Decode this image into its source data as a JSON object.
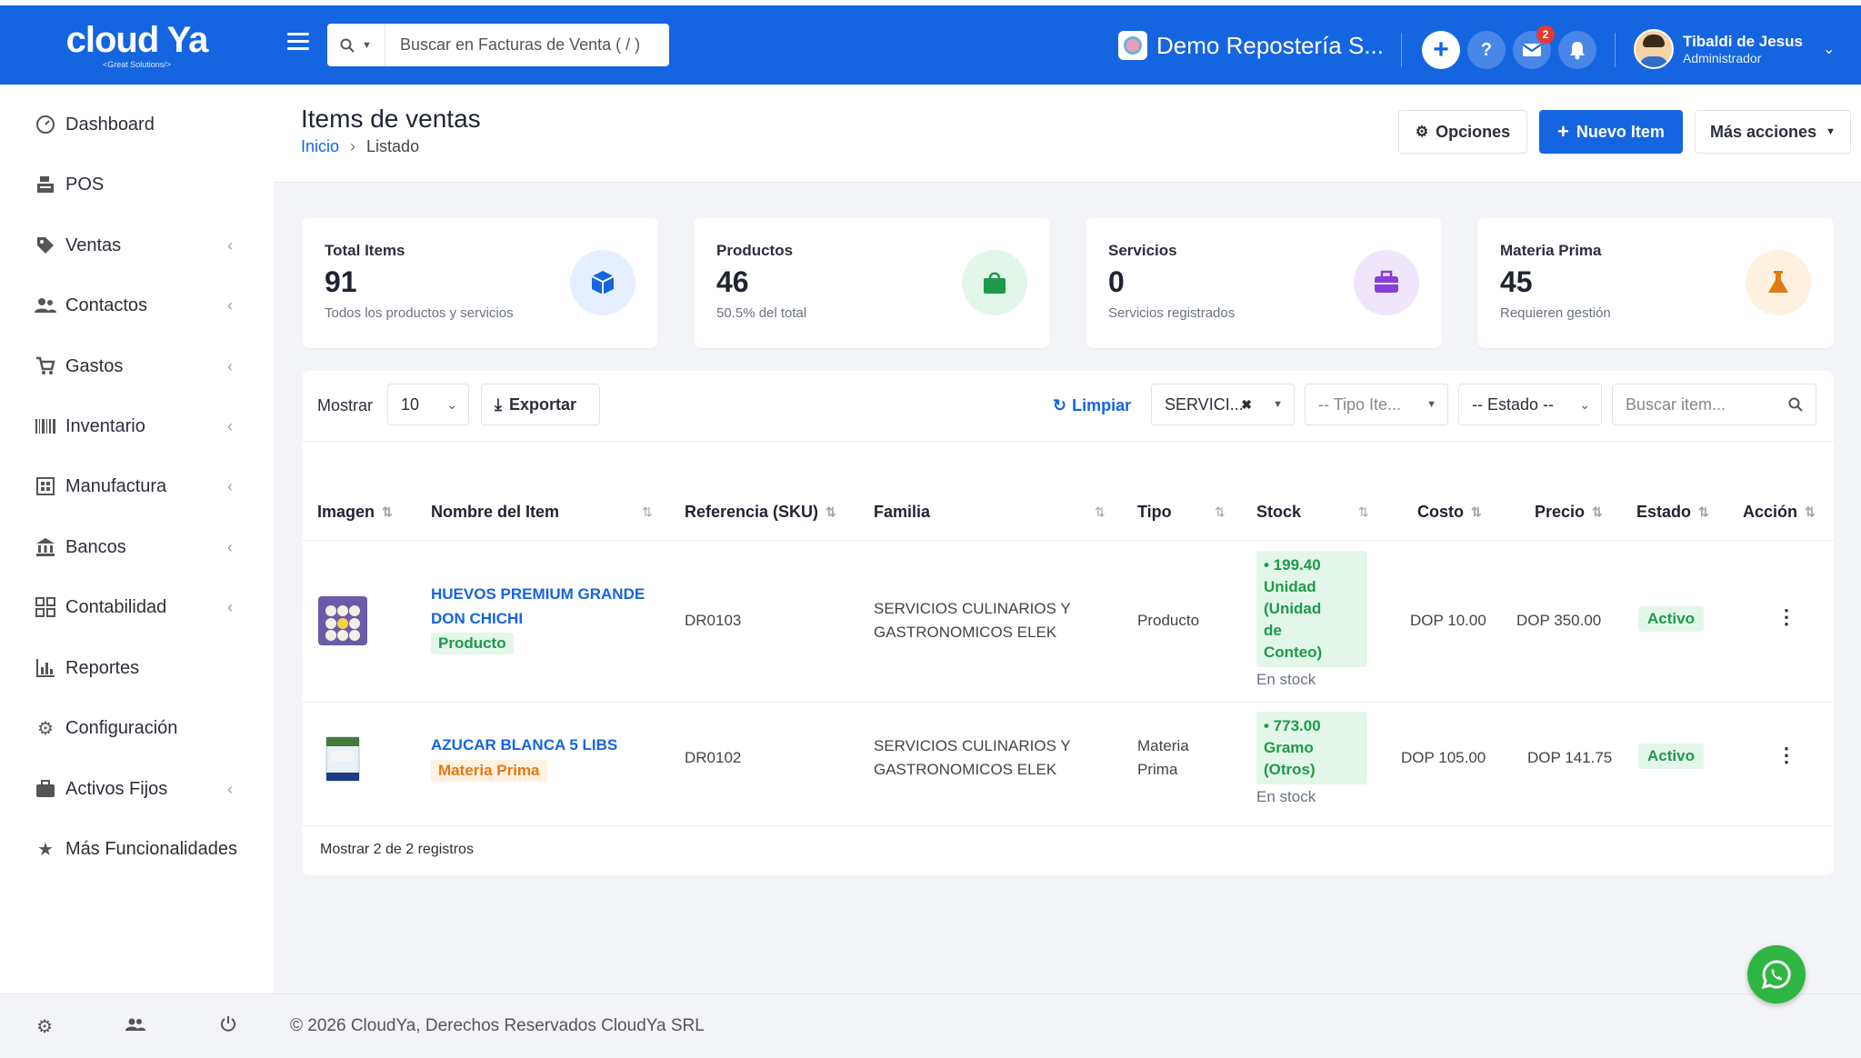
{
  "brand": {
    "name": "cloud Ya",
    "tagline": "<Great Solutions/>"
  },
  "header": {
    "search_placeholder": "Buscar en Facturas de Venta ( / )",
    "company": "Demo Repostería S...",
    "messages_badge": "2",
    "user_name": "Tibaldi de Jesus",
    "user_role": "Administrador"
  },
  "sidebar": {
    "items": [
      {
        "label": "Dashboard",
        "icon": "dashboard-icon"
      },
      {
        "label": "POS",
        "icon": "pos-icon"
      },
      {
        "label": "Ventas",
        "icon": "tag-icon"
      },
      {
        "label": "Contactos",
        "icon": "contacts-icon"
      },
      {
        "label": "Gastos",
        "icon": "cart-icon"
      },
      {
        "label": "Inventario",
        "icon": "barcode-icon"
      },
      {
        "label": "Manufactura",
        "icon": "factory-icon"
      },
      {
        "label": "Bancos",
        "icon": "bank-icon"
      },
      {
        "label": "Contabilidad",
        "icon": "grid-icon"
      },
      {
        "label": "Reportes",
        "icon": "chart-icon"
      },
      {
        "label": "Configuración",
        "icon": "gear-icon"
      },
      {
        "label": "Activos Fijos",
        "icon": "briefcase-icon"
      },
      {
        "label": "Más Funcionalidades",
        "icon": "star-icon"
      }
    ]
  },
  "page": {
    "title": "Items de ventas",
    "breadcrumb_home": "Inicio",
    "breadcrumb_current": "Listado",
    "options_label": "Opciones",
    "new_item_label": "Nuevo Item",
    "more_actions_label": "Más acciones"
  },
  "stats": [
    {
      "label": "Total Items",
      "value": "91",
      "sub": "Todos los productos y servicios",
      "bg": "#e6efff",
      "color": "#1565e0"
    },
    {
      "label": "Productos",
      "value": "46",
      "sub": "50.5% del total",
      "bg": "#e3f6ea",
      "color": "#1e9a4a"
    },
    {
      "label": "Servicios",
      "value": "0",
      "sub": "Servicios registrados",
      "bg": "#efe6fb",
      "color": "#8a3ed8"
    },
    {
      "label": "Materia Prima",
      "value": "45",
      "sub": "Requieren gestión",
      "bg": "#fff1e0",
      "color": "#e07a12"
    }
  ],
  "toolbar": {
    "show_label": "Mostrar",
    "page_size": "10",
    "export_label": "Exportar",
    "clear_label": "Limpiar",
    "family_filter": "SERVICI...",
    "type_filter": "-- Tipo Ite...",
    "status_filter": "-- Estado --",
    "search_placeholder": "Buscar item..."
  },
  "table": {
    "headers": [
      "Imagen",
      "Nombre del Item",
      "Referencia (SKU)",
      "Familia",
      "Tipo",
      "Stock",
      "Costo",
      "Precio",
      "Estado",
      "Acción"
    ],
    "rows": [
      {
        "name_line1": "HUEVOS PREMIUM GRANDE",
        "name_line2": "DON CHICHI",
        "type_badge": "Producto",
        "sku": "DR0103",
        "family_line1": "SERVICIOS CULINARIOS Y",
        "family_line2": "GASTRONOMICOS ELEK",
        "type_line1": "Producto",
        "type_line2": "",
        "stock_lines": [
          "• 199.40",
          "Unidad",
          "(Unidad",
          "de",
          "Conteo)"
        ],
        "stock_note": "En stock",
        "cost": "DOP 10.00",
        "price": "DOP 350.00",
        "status": "Activo"
      },
      {
        "name_line1": "AZUCAR BLANCA 5 LIBS",
        "name_line2": "",
        "type_badge": "Materia Prima",
        "sku": "DR0102",
        "family_line1": "SERVICIOS CULINARIOS Y",
        "family_line2": "GASTRONOMICOS ELEK",
        "type_line1": "Materia",
        "type_line2": "Prima",
        "stock_lines": [
          "• 773.00",
          "Gramo",
          "(Otros)"
        ],
        "stock_note": "En stock",
        "cost": "DOP 105.00",
        "price": "DOP 141.75",
        "status": "Activo"
      }
    ],
    "footer": "Mostrar 2 de 2 registros"
  },
  "footer": {
    "copyright": "© 2026 CloudYa, Derechos Reservados CloudYa SRL"
  }
}
